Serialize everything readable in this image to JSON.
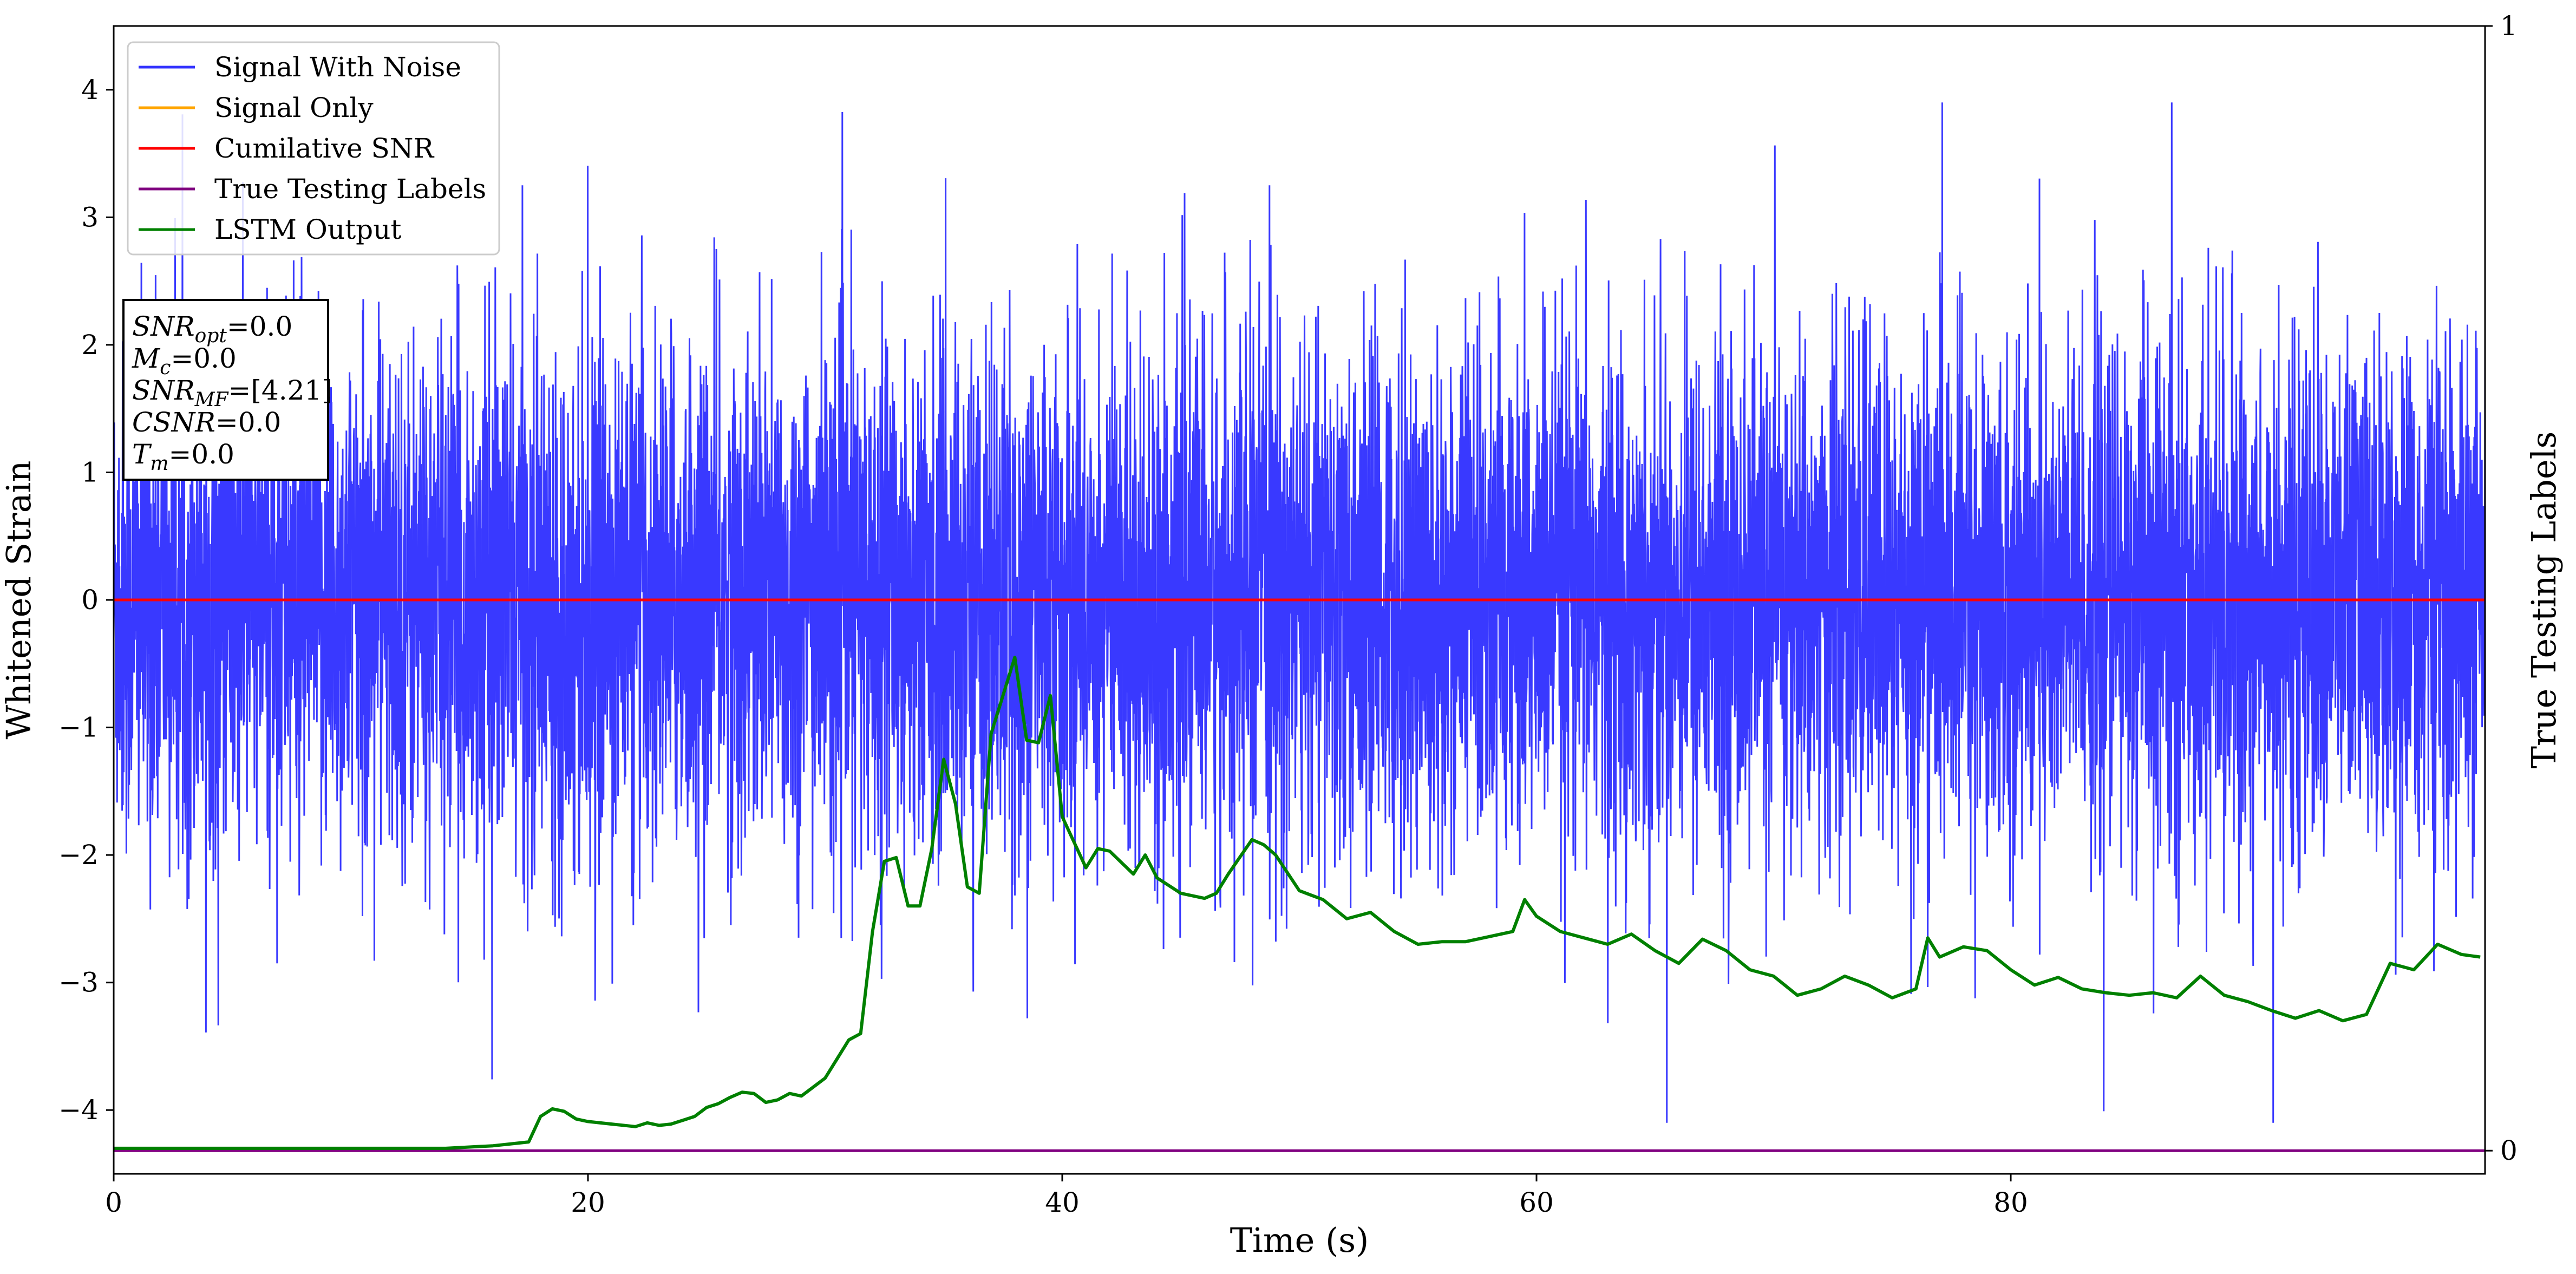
{
  "chart_data": {
    "type": "line",
    "title": "",
    "xlabel": "Time (s)",
    "ylabel": "Whitened Strain",
    "y2label": "True Testing Labels",
    "xlim": [
      0,
      100
    ],
    "ylim": [
      -4.5,
      4.5
    ],
    "y2lim": [
      -0.0206,
      1.0
    ],
    "x_ticks": [
      0,
      20,
      40,
      60,
      80
    ],
    "y_ticks": [
      -4,
      -3,
      -2,
      -1,
      0,
      1,
      2,
      3,
      4
    ],
    "y2_ticks": [
      0,
      1
    ],
    "grid": false,
    "legend_position": "top-left",
    "series": [
      {
        "name": "Signal With Noise",
        "color": "#3333ff",
        "description": "white-noise whitened strain, amplitude approximately -4 to 4",
        "typical_range": [
          -2.5,
          2.5
        ],
        "extreme_range": [
          -4.1,
          3.9
        ]
      },
      {
        "name": "Signal Only",
        "color": "#ffa500",
        "x": [
          0,
          100
        ],
        "y": [
          0,
          0
        ]
      },
      {
        "name": "Cumilative SNR",
        "color": "#ff0000",
        "x": [
          0,
          100
        ],
        "y": [
          0,
          0
        ]
      },
      {
        "name": "True Testing Labels",
        "color": "#800080",
        "axis": "right",
        "x": [
          0,
          100
        ],
        "y": [
          0,
          0
        ]
      },
      {
        "name": "LSTM Output",
        "color": "#008000",
        "axis": "left",
        "x": [
          0,
          5,
          10,
          14,
          15,
          16,
          17,
          17.5,
          18,
          18.5,
          19,
          19.5,
          20,
          21,
          22,
          22.5,
          23,
          23.5,
          24,
          24.5,
          25,
          25.5,
          26,
          26.5,
          27,
          27.5,
          28,
          28.5,
          29,
          29.5,
          30,
          30.5,
          31,
          31.5,
          32,
          32.5,
          33,
          33.5,
          34,
          34.5,
          35,
          35.5,
          36,
          36.5,
          37,
          37.5,
          38,
          38.5,
          39,
          39.5,
          40,
          41,
          41.5,
          42,
          43,
          43.5,
          44,
          45,
          46,
          46.5,
          47,
          48,
          48.5,
          49,
          50,
          51,
          52,
          53,
          54,
          55,
          56,
          57,
          58,
          59,
          59.5,
          60,
          61,
          62,
          63,
          64,
          65,
          66,
          67,
          68,
          69,
          70,
          71,
          72,
          73,
          74,
          75,
          76,
          76.5,
          77,
          78,
          79,
          80,
          81,
          82,
          83,
          84,
          85,
          86,
          87,
          88,
          89,
          90,
          91,
          92,
          93,
          94,
          95,
          96,
          97,
          98,
          99,
          99.8
        ],
        "y": [
          -4.3,
          -4.3,
          -4.3,
          -4.3,
          -4.29,
          -4.28,
          -4.26,
          -4.25,
          -4.05,
          -3.99,
          -4.01,
          -4.07,
          -4.09,
          -4.11,
          -4.13,
          -4.1,
          -4.12,
          -4.11,
          -4.08,
          -4.05,
          -3.98,
          -3.95,
          -3.9,
          -3.86,
          -3.87,
          -3.94,
          -3.92,
          -3.87,
          -3.89,
          -3.82,
          -3.75,
          -3.6,
          -3.45,
          -3.4,
          -2.6,
          -2.05,
          -2.02,
          -2.4,
          -2.4,
          -1.95,
          -1.25,
          -1.6,
          -2.25,
          -2.3,
          -1.05,
          -0.75,
          -0.45,
          -1.1,
          -1.12,
          -0.75,
          -1.7,
          -2.1,
          -1.95,
          -1.97,
          -2.15,
          -2.0,
          -2.18,
          -2.3,
          -2.34,
          -2.3,
          -2.15,
          -1.88,
          -1.92,
          -2.0,
          -2.28,
          -2.35,
          -2.5,
          -2.45,
          -2.6,
          -2.7,
          -2.68,
          -2.68,
          -2.64,
          -2.6,
          -2.35,
          -2.48,
          -2.6,
          -2.65,
          -2.7,
          -2.62,
          -2.75,
          -2.85,
          -2.66,
          -2.75,
          -2.9,
          -2.95,
          -3.1,
          -3.05,
          -2.95,
          -3.02,
          -3.12,
          -3.05,
          -2.65,
          -2.8,
          -2.72,
          -2.75,
          -2.9,
          -3.02,
          -2.96,
          -3.05,
          -3.08,
          -3.1,
          -3.08,
          -3.12,
          -2.95,
          -3.1,
          -3.15,
          -3.22,
          -3.28,
          -3.22,
          -3.3,
          -3.25,
          -2.85,
          -2.9,
          -2.7,
          -2.78,
          -2.8
        ]
      }
    ],
    "annotation_box": {
      "lines": [
        {
          "var": "SNR",
          "sub": "opt",
          "value": "=0.0"
        },
        {
          "var": "M",
          "sub": "c",
          "value": "=0.0"
        },
        {
          "var": "SNR",
          "sub": "MF",
          "value": "=[4.21]"
        },
        {
          "var": "CSNR",
          "sub": "",
          "value": "=0.0"
        },
        {
          "var": "T",
          "sub": "m",
          "value": "=0.0"
        }
      ]
    }
  }
}
